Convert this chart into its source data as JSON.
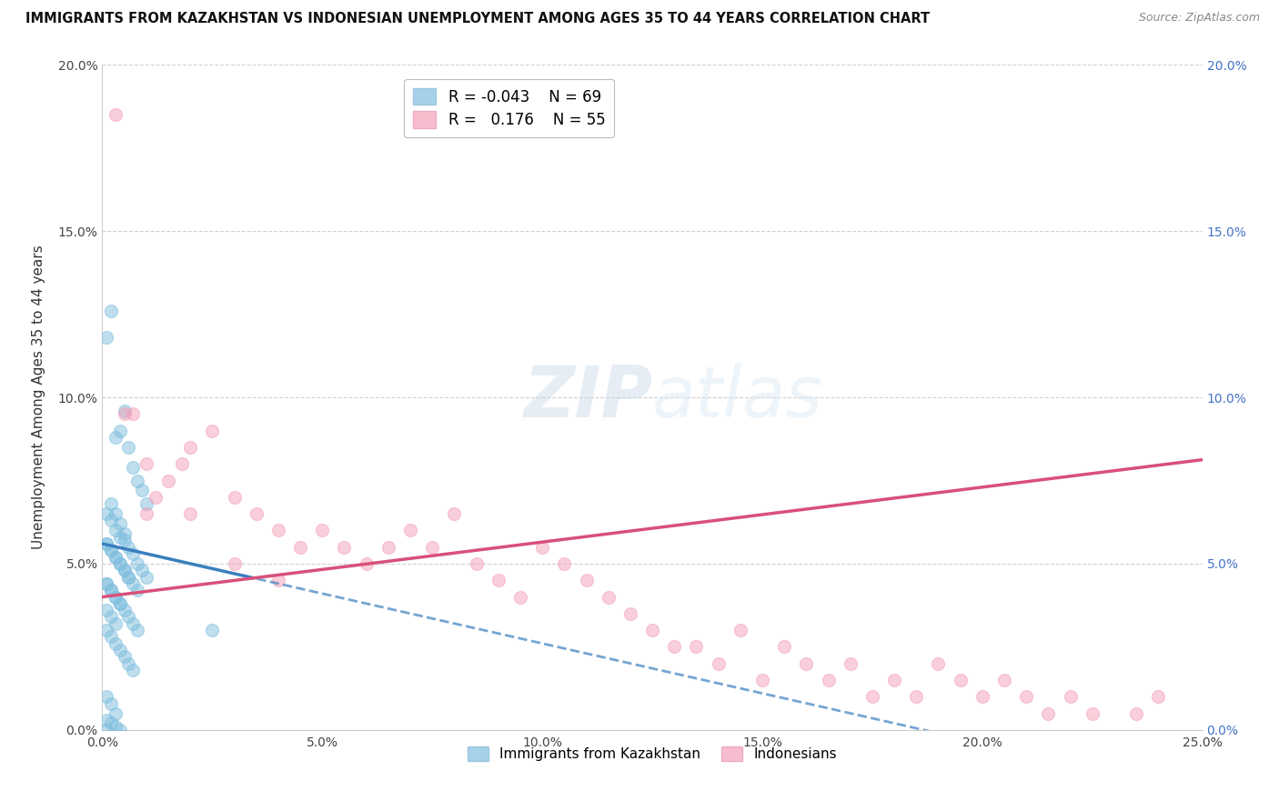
{
  "title": "IMMIGRANTS FROM KAZAKHSTAN VS INDONESIAN UNEMPLOYMENT AMONG AGES 35 TO 44 YEARS CORRELATION CHART",
  "source": "Source: ZipAtlas.com",
  "ylabel": "Unemployment Among Ages 35 to 44 years",
  "xlim": [
    0.0,
    0.25
  ],
  "ylim": [
    0.0,
    0.2
  ],
  "xticks": [
    0.0,
    0.05,
    0.1,
    0.15,
    0.2,
    0.25
  ],
  "yticks": [
    0.0,
    0.05,
    0.1,
    0.15,
    0.2
  ],
  "xticklabels": [
    "0.0%",
    "5.0%",
    "10.0%",
    "15.0%",
    "20.0%",
    "25.0%"
  ],
  "yticklabels": [
    "0.0%",
    "5.0%",
    "10.0%",
    "15.0%",
    "20.0%"
  ],
  "right_yticklabels": [
    "0.0%",
    "5.0%",
    "10.0%",
    "15.0%",
    "20.0%"
  ],
  "legend1_r": "-0.043",
  "legend1_n": "69",
  "legend2_r": "0.176",
  "legend2_n": "55",
  "blue_color": "#7fbfdf",
  "pink_color": "#f4a0b8",
  "blue_line_color": "#3a7fbf",
  "pink_line_color": "#d9507a",
  "watermark_zip": "ZIP",
  "watermark_atlas": "atlas",
  "blue_scatter_x": [
    0.001,
    0.002,
    0.003,
    0.004,
    0.005,
    0.006,
    0.007,
    0.008,
    0.009,
    0.01,
    0.001,
    0.002,
    0.003,
    0.004,
    0.005,
    0.006,
    0.007,
    0.008,
    0.009,
    0.01,
    0.001,
    0.002,
    0.003,
    0.004,
    0.005,
    0.006,
    0.007,
    0.008,
    0.002,
    0.003,
    0.004,
    0.005,
    0.001,
    0.002,
    0.003,
    0.004,
    0.005,
    0.006,
    0.001,
    0.002,
    0.003,
    0.004,
    0.001,
    0.002,
    0.003,
    0.001,
    0.002,
    0.003,
    0.004,
    0.005,
    0.006,
    0.007,
    0.001,
    0.002,
    0.003,
    0.004,
    0.005,
    0.006,
    0.007,
    0.008,
    0.001,
    0.002,
    0.003,
    0.001,
    0.002,
    0.003,
    0.004,
    0.025,
    0.001
  ],
  "blue_scatter_y": [
    0.118,
    0.126,
    0.088,
    0.09,
    0.096,
    0.085,
    0.079,
    0.075,
    0.072,
    0.068,
    0.065,
    0.063,
    0.06,
    0.058,
    0.057,
    0.055,
    0.053,
    0.05,
    0.048,
    0.046,
    0.044,
    0.042,
    0.04,
    0.038,
    0.036,
    0.034,
    0.032,
    0.03,
    0.068,
    0.065,
    0.062,
    0.059,
    0.056,
    0.054,
    0.052,
    0.05,
    0.048,
    0.046,
    0.044,
    0.042,
    0.04,
    0.038,
    0.036,
    0.034,
    0.032,
    0.03,
    0.028,
    0.026,
    0.024,
    0.022,
    0.02,
    0.018,
    0.056,
    0.054,
    0.052,
    0.05,
    0.048,
    0.046,
    0.044,
    0.042,
    0.01,
    0.008,
    0.005,
    0.003,
    0.002,
    0.001,
    0.0,
    0.03,
    0.0
  ],
  "pink_scatter_x": [
    0.003,
    0.005,
    0.007,
    0.01,
    0.012,
    0.015,
    0.018,
    0.02,
    0.025,
    0.03,
    0.035,
    0.04,
    0.045,
    0.05,
    0.055,
    0.06,
    0.065,
    0.07,
    0.075,
    0.08,
    0.085,
    0.09,
    0.095,
    0.1,
    0.105,
    0.11,
    0.115,
    0.12,
    0.125,
    0.13,
    0.135,
    0.14,
    0.145,
    0.15,
    0.155,
    0.16,
    0.165,
    0.17,
    0.175,
    0.18,
    0.185,
    0.19,
    0.195,
    0.2,
    0.205,
    0.21,
    0.215,
    0.22,
    0.225,
    0.235,
    0.01,
    0.02,
    0.03,
    0.04,
    0.24
  ],
  "pink_scatter_y": [
    0.185,
    0.095,
    0.095,
    0.065,
    0.07,
    0.075,
    0.08,
    0.085,
    0.09,
    0.07,
    0.065,
    0.06,
    0.055,
    0.06,
    0.055,
    0.05,
    0.055,
    0.06,
    0.055,
    0.065,
    0.05,
    0.045,
    0.04,
    0.055,
    0.05,
    0.045,
    0.04,
    0.035,
    0.03,
    0.025,
    0.025,
    0.02,
    0.03,
    0.015,
    0.025,
    0.02,
    0.015,
    0.02,
    0.01,
    0.015,
    0.01,
    0.02,
    0.015,
    0.01,
    0.015,
    0.01,
    0.005,
    0.01,
    0.005,
    0.005,
    0.08,
    0.065,
    0.05,
    0.045,
    0.01
  ]
}
